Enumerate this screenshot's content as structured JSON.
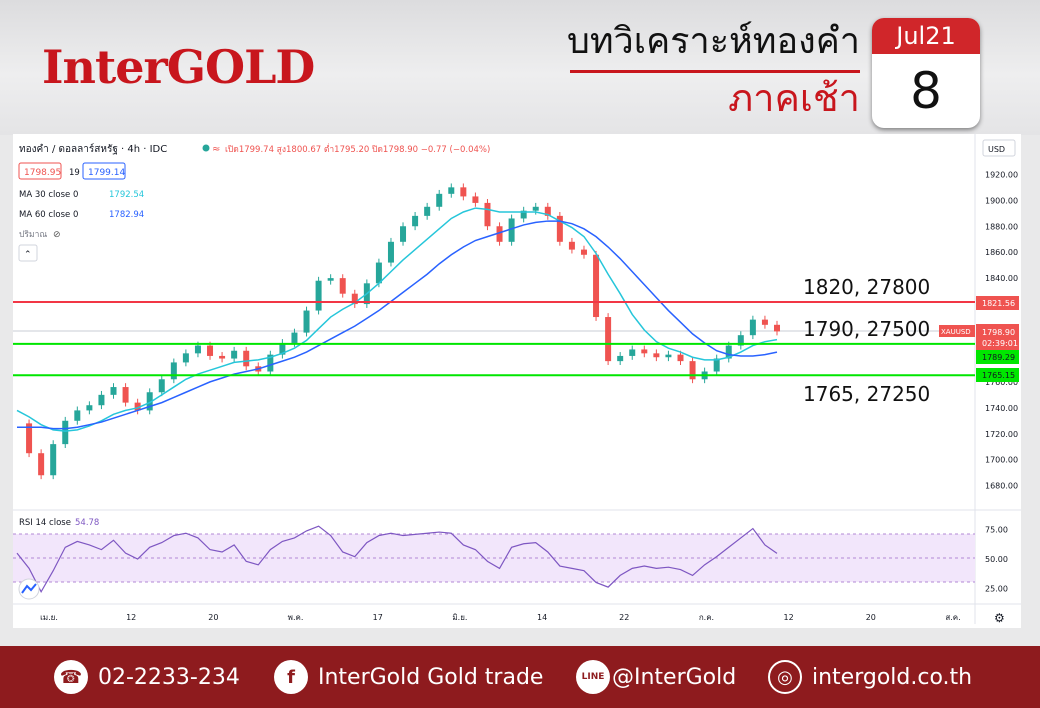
{
  "brand": {
    "logo": "InterGOLD"
  },
  "header": {
    "title_line1": "บทวิเคราะห์ทองคำ",
    "title_line2": "ภาคเช้า"
  },
  "calendar": {
    "month": "Jul21",
    "day": "8"
  },
  "colors": {
    "accent_red": "#c8161d",
    "footer_bg": "#8e1b1e",
    "resistance_line": "#f23645",
    "support_line": "#00e600",
    "ma30": "#26c6da",
    "ma60": "#2962ff",
    "candle_up": "#26a69a",
    "candle_down": "#ef5350",
    "rsi_line": "#7e57c2"
  },
  "chart_info": {
    "symbol": "ทองคำ / ดอลลาร์สหรัฐ · 4h · IDC",
    "ohlc": "เปิด1799.74  สูง1800.67  ต่ำ1795.20  ปิด1798.90  −0.77 (−0.04%)",
    "bid": "1798.95",
    "spread": "19",
    "ask": "1799.14",
    "ma30_label": "MA 30 close 0",
    "ma30_value": "1792.54",
    "ma60_label": "MA 60 close 0",
    "ma60_value": "1782.94",
    "volume_label": "ปริมาณ",
    "currency": "USD",
    "rsi_label": "RSI 14 close",
    "rsi_value": "54.78",
    "ticker_tag": "XAUUSD",
    "ticker_price": "1798.90",
    "countdown": "02:39:01",
    "price_tag_red": "1821.56",
    "price_tag_green1": "1789.29",
    "price_tag_green2": "1765.15"
  },
  "levels": [
    {
      "label": "1820, 27800",
      "value": 1821.56,
      "color": "#f23645"
    },
    {
      "label": "1790, 27500",
      "value": 1789.29,
      "color": "#00e600"
    },
    {
      "label": "1765, 27250",
      "value": 1765.15,
      "color": "#00e600"
    }
  ],
  "chart_data": {
    "type": "line",
    "title": "",
    "ylim": [
      1672,
      1928
    ],
    "yticks": [
      1680,
      1700,
      1720,
      1740,
      1760,
      1780,
      1800,
      1820,
      1840,
      1860,
      1880,
      1900,
      1920
    ],
    "xticks": [
      "เม.ย.",
      "12",
      "20",
      "พ.ค.",
      "17",
      "มิ.ย.",
      "14",
      "22",
      "ก.ค.",
      "12",
      "20",
      "ส.ค."
    ],
    "rsi_ylim": [
      15,
      85
    ],
    "rsi_ticks": [
      25.0,
      50.0,
      75.0
    ],
    "series": [
      {
        "name": "XAUUSD 4h (close)",
        "values": [
          1728,
          1705,
          1688,
          1712,
          1730,
          1738,
          1742,
          1750,
          1756,
          1744,
          1738,
          1752,
          1762,
          1775,
          1782,
          1788,
          1780,
          1778,
          1784,
          1772,
          1768,
          1781,
          1790,
          1798,
          1815,
          1838,
          1840,
          1828,
          1820,
          1836,
          1852,
          1868,
          1880,
          1888,
          1895,
          1905,
          1910,
          1903,
          1898,
          1880,
          1868,
          1886,
          1892,
          1895,
          1888,
          1868,
          1862,
          1858,
          1810,
          1776,
          1780,
          1785,
          1782,
          1779,
          1781,
          1776,
          1762,
          1768,
          1778,
          1788,
          1796,
          1808,
          1804,
          1798.9
        ]
      },
      {
        "name": "MA 30 close 0",
        "values": [
          1738,
          1733,
          1727,
          1723,
          1722,
          1723,
          1726,
          1730,
          1735,
          1738,
          1740,
          1744,
          1750,
          1756,
          1762,
          1766,
          1769,
          1772,
          1775,
          1776,
          1777,
          1779,
          1782,
          1786,
          1792,
          1801,
          1810,
          1816,
          1821,
          1828,
          1836,
          1845,
          1854,
          1862,
          1870,
          1878,
          1886,
          1891,
          1894,
          1893,
          1891,
          1891,
          1891,
          1891,
          1889,
          1884,
          1879,
          1872,
          1859,
          1843,
          1828,
          1812,
          1800,
          1791,
          1786,
          1783,
          1779,
          1777,
          1777,
          1779,
          1783,
          1788,
          1791,
          1792.54
        ]
      },
      {
        "name": "MA 60 close 0",
        "values": [
          1725,
          1725,
          1725,
          1724,
          1724,
          1725,
          1727,
          1729,
          1732,
          1735,
          1738,
          1741,
          1744,
          1748,
          1752,
          1756,
          1760,
          1763,
          1766,
          1768,
          1770,
          1773,
          1776,
          1779,
          1783,
          1788,
          1793,
          1798,
          1803,
          1809,
          1815,
          1822,
          1829,
          1836,
          1843,
          1851,
          1858,
          1864,
          1869,
          1872,
          1875,
          1878,
          1881,
          1883,
          1884,
          1884,
          1882,
          1878,
          1872,
          1864,
          1855,
          1845,
          1835,
          1825,
          1815,
          1806,
          1797,
          1790,
          1784,
          1781,
          1780,
          1780,
          1781,
          1782.94
        ]
      },
      {
        "name": "RSI 14 close",
        "values": [
          55,
          42,
          22,
          40,
          60,
          65,
          62,
          58,
          66,
          55,
          50,
          60,
          64,
          70,
          72,
          68,
          58,
          56,
          62,
          48,
          45,
          58,
          65,
          68,
          74,
          78,
          70,
          56,
          52,
          64,
          70,
          72,
          70,
          71,
          72,
          73,
          72,
          62,
          58,
          48,
          42,
          60,
          63,
          64,
          56,
          44,
          42,
          40,
          30,
          26,
          36,
          42,
          44,
          42,
          43,
          41,
          36,
          45,
          52,
          60,
          68,
          76,
          62,
          54.78
        ]
      }
    ]
  },
  "footer": {
    "phone": "02-2233-234",
    "facebook": "InterGold Gold trade",
    "line": "@InterGold",
    "website": "intergold.co.th"
  }
}
